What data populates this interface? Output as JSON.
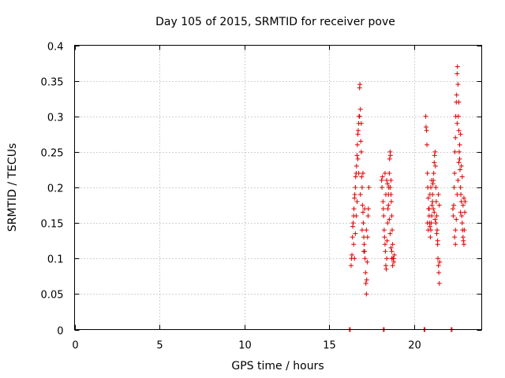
{
  "chart_data": {
    "type": "scatter",
    "title": "Day 105 of 2015, SRMTID for receiver pove",
    "xlabel": "GPS time / hours",
    "ylabel": "SRMTID / TECUs",
    "xlim": [
      0,
      24
    ],
    "ylim": [
      0,
      0.4
    ],
    "xticks": [
      0,
      5,
      10,
      15,
      20
    ],
    "xtick_labels": [
      "0",
      "5",
      "10",
      "15",
      "20"
    ],
    "yticks": [
      0,
      0.05,
      0.1,
      0.15,
      0.2,
      0.25,
      0.3,
      0.35,
      0.4
    ],
    "ytick_labels": [
      "0",
      "0.05",
      "0.1",
      "0.15",
      "0.2",
      "0.25",
      "0.3",
      "0.35",
      "0.4"
    ],
    "grid": true,
    "marker": "plus",
    "color": "#e00000",
    "series": [
      {
        "name": "pove",
        "points": [
          [
            16.2,
            0
          ],
          [
            16.25,
            0
          ],
          [
            18.2,
            0
          ],
          [
            18.25,
            0
          ],
          [
            20.6,
            0
          ],
          [
            20.65,
            0
          ],
          [
            22.2,
            0
          ],
          [
            22.25,
            0
          ],
          [
            16.3,
            0.09
          ],
          [
            16.32,
            0.1
          ],
          [
            16.35,
            0.105
          ],
          [
            16.38,
            0.13
          ],
          [
            16.4,
            0.145
          ],
          [
            16.42,
            0.15
          ],
          [
            16.45,
            0.16
          ],
          [
            16.47,
            0.17
          ],
          [
            16.5,
            0.185
          ],
          [
            16.52,
            0.19
          ],
          [
            16.55,
            0.2
          ],
          [
            16.57,
            0.215
          ],
          [
            16.6,
            0.22
          ],
          [
            16.62,
            0.23
          ],
          [
            16.65,
            0.245
          ],
          [
            16.67,
            0.26
          ],
          [
            16.7,
            0.275
          ],
          [
            16.72,
            0.28
          ],
          [
            16.75,
            0.29
          ],
          [
            16.77,
            0.3
          ],
          [
            16.8,
            0.34
          ],
          [
            16.82,
            0.345
          ],
          [
            16.85,
            0.31
          ],
          [
            16.87,
            0.265
          ],
          [
            16.9,
            0.25
          ],
          [
            16.92,
            0.215
          ],
          [
            16.95,
            0.2
          ],
          [
            16.97,
            0.175
          ],
          [
            17.0,
            0.165
          ],
          [
            17.02,
            0.15
          ],
          [
            17.05,
            0.13
          ],
          [
            17.07,
            0.12
          ],
          [
            17.1,
            0.11
          ],
          [
            17.12,
            0.1
          ],
          [
            17.15,
            0.08
          ],
          [
            17.17,
            0.065
          ],
          [
            17.2,
            0.05
          ],
          [
            17.22,
            0.07
          ],
          [
            17.25,
            0.095
          ],
          [
            17.27,
            0.13
          ],
          [
            17.3,
            0.16
          ],
          [
            17.32,
            0.17
          ],
          [
            17.35,
            0.2
          ],
          [
            16.45,
            0.12
          ],
          [
            16.55,
            0.135
          ],
          [
            16.65,
            0.18
          ],
          [
            16.75,
            0.22
          ],
          [
            16.85,
            0.19
          ],
          [
            16.95,
            0.14
          ],
          [
            17.05,
            0.11
          ],
          [
            16.5,
            0.1
          ],
          [
            16.6,
            0.16
          ],
          [
            16.7,
            0.24
          ],
          [
            16.8,
            0.3
          ],
          [
            16.9,
            0.29
          ],
          [
            17.0,
            0.22
          ],
          [
            17.1,
            0.17
          ],
          [
            17.2,
            0.14
          ],
          [
            18.1,
            0.21
          ],
          [
            18.12,
            0.2
          ],
          [
            18.15,
            0.215
          ],
          [
            18.18,
            0.18
          ],
          [
            18.2,
            0.17
          ],
          [
            18.22,
            0.16
          ],
          [
            18.25,
            0.14
          ],
          [
            18.27,
            0.13
          ],
          [
            18.3,
            0.12
          ],
          [
            18.32,
            0.11
          ],
          [
            18.35,
            0.09
          ],
          [
            18.37,
            0.085
          ],
          [
            18.4,
            0.1
          ],
          [
            18.42,
            0.125
          ],
          [
            18.45,
            0.15
          ],
          [
            18.47,
            0.17
          ],
          [
            18.5,
            0.19
          ],
          [
            18.52,
            0.2
          ],
          [
            18.55,
            0.22
          ],
          [
            18.57,
            0.24
          ],
          [
            18.6,
            0.25
          ],
          [
            18.62,
            0.245
          ],
          [
            18.65,
            0.21
          ],
          [
            18.67,
            0.18
          ],
          [
            18.7,
            0.16
          ],
          [
            18.72,
            0.14
          ],
          [
            18.75,
            0.12
          ],
          [
            18.77,
            0.1
          ],
          [
            18.8,
            0.1
          ],
          [
            18.82,
            0.095
          ],
          [
            18.85,
            0.105
          ],
          [
            18.4,
            0.21
          ],
          [
            18.45,
            0.205
          ],
          [
            18.5,
            0.175
          ],
          [
            18.55,
            0.155
          ],
          [
            18.6,
            0.135
          ],
          [
            18.65,
            0.115
          ],
          [
            18.7,
            0.1
          ],
          [
            18.75,
            0.09
          ],
          [
            18.3,
            0.22
          ],
          [
            18.35,
            0.19
          ],
          [
            18.6,
            0.2
          ],
          [
            18.65,
            0.19
          ],
          [
            18.7,
            0.11
          ],
          [
            20.7,
            0.3
          ],
          [
            20.72,
            0.285
          ],
          [
            20.75,
            0.28
          ],
          [
            20.77,
            0.26
          ],
          [
            20.8,
            0.22
          ],
          [
            20.82,
            0.2
          ],
          [
            20.85,
            0.185
          ],
          [
            20.87,
            0.17
          ],
          [
            20.9,
            0.16
          ],
          [
            20.92,
            0.15
          ],
          [
            20.95,
            0.145
          ],
          [
            20.97,
            0.13
          ],
          [
            21.0,
            0.14
          ],
          [
            21.02,
            0.15
          ],
          [
            21.05,
            0.16
          ],
          [
            21.07,
            0.175
          ],
          [
            21.1,
            0.19
          ],
          [
            21.12,
            0.205
          ],
          [
            21.15,
            0.21
          ],
          [
            21.17,
            0.22
          ],
          [
            21.2,
            0.235
          ],
          [
            21.22,
            0.245
          ],
          [
            21.25,
            0.25
          ],
          [
            21.27,
            0.23
          ],
          [
            21.3,
            0.2
          ],
          [
            21.32,
            0.18
          ],
          [
            21.35,
            0.16
          ],
          [
            21.37,
            0.14
          ],
          [
            21.4,
            0.12
          ],
          [
            21.42,
            0.1
          ],
          [
            21.45,
            0.09
          ],
          [
            21.47,
            0.08
          ],
          [
            21.5,
            0.065
          ],
          [
            21.52,
            0.095
          ],
          [
            20.8,
            0.15
          ],
          [
            20.85,
            0.14
          ],
          [
            20.9,
            0.17
          ],
          [
            20.95,
            0.19
          ],
          [
            21.0,
            0.2
          ],
          [
            21.05,
            0.21
          ],
          [
            21.1,
            0.18
          ],
          [
            21.15,
            0.17
          ],
          [
            21.2,
            0.165
          ],
          [
            21.25,
            0.155
          ],
          [
            21.3,
            0.15
          ],
          [
            21.35,
            0.135
          ],
          [
            21.4,
            0.125
          ],
          [
            21.45,
            0.19
          ],
          [
            21.5,
            0.175
          ],
          [
            22.3,
            0.17
          ],
          [
            22.32,
            0.16
          ],
          [
            22.35,
            0.175
          ],
          [
            22.37,
            0.2
          ],
          [
            22.4,
            0.22
          ],
          [
            22.42,
            0.25
          ],
          [
            22.45,
            0.27
          ],
          [
            22.47,
            0.3
          ],
          [
            22.5,
            0.32
          ],
          [
            22.52,
            0.33
          ],
          [
            22.55,
            0.36
          ],
          [
            22.57,
            0.37
          ],
          [
            22.6,
            0.345
          ],
          [
            22.62,
            0.3
          ],
          [
            22.65,
            0.28
          ],
          [
            22.67,
            0.25
          ],
          [
            22.7,
            0.24
          ],
          [
            22.72,
            0.225
          ],
          [
            22.75,
            0.2
          ],
          [
            22.77,
            0.19
          ],
          [
            22.8,
            0.18
          ],
          [
            22.82,
            0.16
          ],
          [
            22.85,
            0.15
          ],
          [
            22.87,
            0.14
          ],
          [
            22.9,
            0.13
          ],
          [
            22.92,
            0.125
          ],
          [
            22.95,
            0.12
          ],
          [
            22.97,
            0.14
          ],
          [
            23.0,
            0.165
          ],
          [
            23.02,
            0.18
          ],
          [
            22.4,
            0.13
          ],
          [
            22.45,
            0.14
          ],
          [
            22.5,
            0.155
          ],
          [
            22.55,
            0.19
          ],
          [
            22.6,
            0.21
          ],
          [
            22.65,
            0.235
          ],
          [
            22.7,
            0.26
          ],
          [
            22.75,
            0.275
          ],
          [
            22.8,
            0.23
          ],
          [
            22.85,
            0.215
          ],
          [
            22.9,
            0.175
          ],
          [
            22.95,
            0.185
          ],
          [
            22.45,
            0.12
          ],
          [
            22.55,
            0.29
          ],
          [
            22.65,
            0.32
          ],
          [
            22.75,
            0.165
          ]
        ]
      }
    ]
  }
}
